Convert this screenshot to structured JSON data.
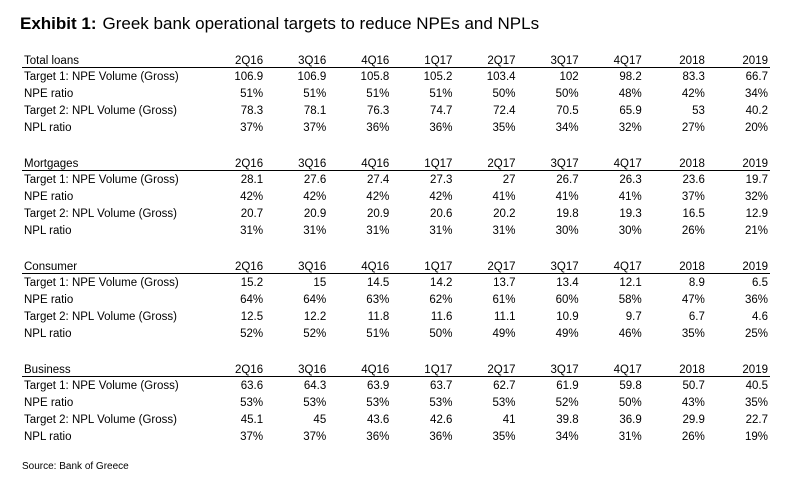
{
  "title": {
    "lead": "Exhibit 1:",
    "text": "Greek bank operational targets to reduce NPEs and NPLs"
  },
  "columns": [
    "2Q16",
    "3Q16",
    "4Q16",
    "1Q17",
    "2Q17",
    "3Q17",
    "4Q17",
    "2018",
    "2019"
  ],
  "sections": [
    {
      "name": "Total loans",
      "rows": [
        {
          "label": "Target 1: NPE Volume (Gross)",
          "values": [
            "106.9",
            "106.9",
            "105.8",
            "105.2",
            "103.4",
            "102",
            "98.2",
            "83.3",
            "66.7"
          ]
        },
        {
          "label": "NPE ratio",
          "values": [
            "51%",
            "51%",
            "51%",
            "51%",
            "50%",
            "50%",
            "48%",
            "42%",
            "34%"
          ]
        },
        {
          "label": "Target 2: NPL Volume (Gross)",
          "values": [
            "78.3",
            "78.1",
            "76.3",
            "74.7",
            "72.4",
            "70.5",
            "65.9",
            "53",
            "40.2"
          ]
        },
        {
          "label": "NPL ratio",
          "values": [
            "37%",
            "37%",
            "36%",
            "36%",
            "35%",
            "34%",
            "32%",
            "27%",
            "20%"
          ]
        }
      ]
    },
    {
      "name": "Mortgages",
      "rows": [
        {
          "label": "Target 1: NPE Volume (Gross)",
          "values": [
            "28.1",
            "27.6",
            "27.4",
            "27.3",
            "27",
            "26.7",
            "26.3",
            "23.6",
            "19.7"
          ]
        },
        {
          "label": "NPE ratio",
          "values": [
            "42%",
            "42%",
            "42%",
            "42%",
            "41%",
            "41%",
            "41%",
            "37%",
            "32%"
          ]
        },
        {
          "label": "Target 2: NPL Volume (Gross)",
          "values": [
            "20.7",
            "20.9",
            "20.9",
            "20.6",
            "20.2",
            "19.8",
            "19.3",
            "16.5",
            "12.9"
          ]
        },
        {
          "label": "NPL ratio",
          "values": [
            "31%",
            "31%",
            "31%",
            "31%",
            "31%",
            "30%",
            "30%",
            "26%",
            "21%"
          ]
        }
      ]
    },
    {
      "name": "Consumer",
      "rows": [
        {
          "label": "Target 1: NPE Volume (Gross)",
          "values": [
            "15.2",
            "15",
            "14.5",
            "14.2",
            "13.7",
            "13.4",
            "12.1",
            "8.9",
            "6.5"
          ]
        },
        {
          "label": "NPE ratio",
          "values": [
            "64%",
            "64%",
            "63%",
            "62%",
            "61%",
            "60%",
            "58%",
            "47%",
            "36%"
          ]
        },
        {
          "label": "Target 2: NPL Volume (Gross)",
          "values": [
            "12.5",
            "12.2",
            "11.8",
            "11.6",
            "11.1",
            "10.9",
            "9.7",
            "6.7",
            "4.6"
          ]
        },
        {
          "label": "NPL ratio",
          "values": [
            "52%",
            "52%",
            "51%",
            "50%",
            "49%",
            "49%",
            "46%",
            "35%",
            "25%"
          ]
        }
      ]
    },
    {
      "name": "Business",
      "rows": [
        {
          "label": "Target 1: NPE Volume (Gross)",
          "values": [
            "63.6",
            "64.3",
            "63.9",
            "63.7",
            "62.7",
            "61.9",
            "59.8",
            "50.7",
            "40.5"
          ]
        },
        {
          "label": "NPE ratio",
          "values": [
            "53%",
            "53%",
            "53%",
            "53%",
            "53%",
            "52%",
            "50%",
            "43%",
            "35%"
          ]
        },
        {
          "label": "Target 2: NPL Volume (Gross)",
          "values": [
            "45.1",
            "45",
            "43.6",
            "42.6",
            "41",
            "39.8",
            "36.9",
            "29.9",
            "22.7"
          ]
        },
        {
          "label": "NPL ratio",
          "values": [
            "37%",
            "37%",
            "36%",
            "36%",
            "35%",
            "34%",
            "31%",
            "26%",
            "19%"
          ]
        }
      ]
    }
  ],
  "source": "Source: Bank of Greece"
}
